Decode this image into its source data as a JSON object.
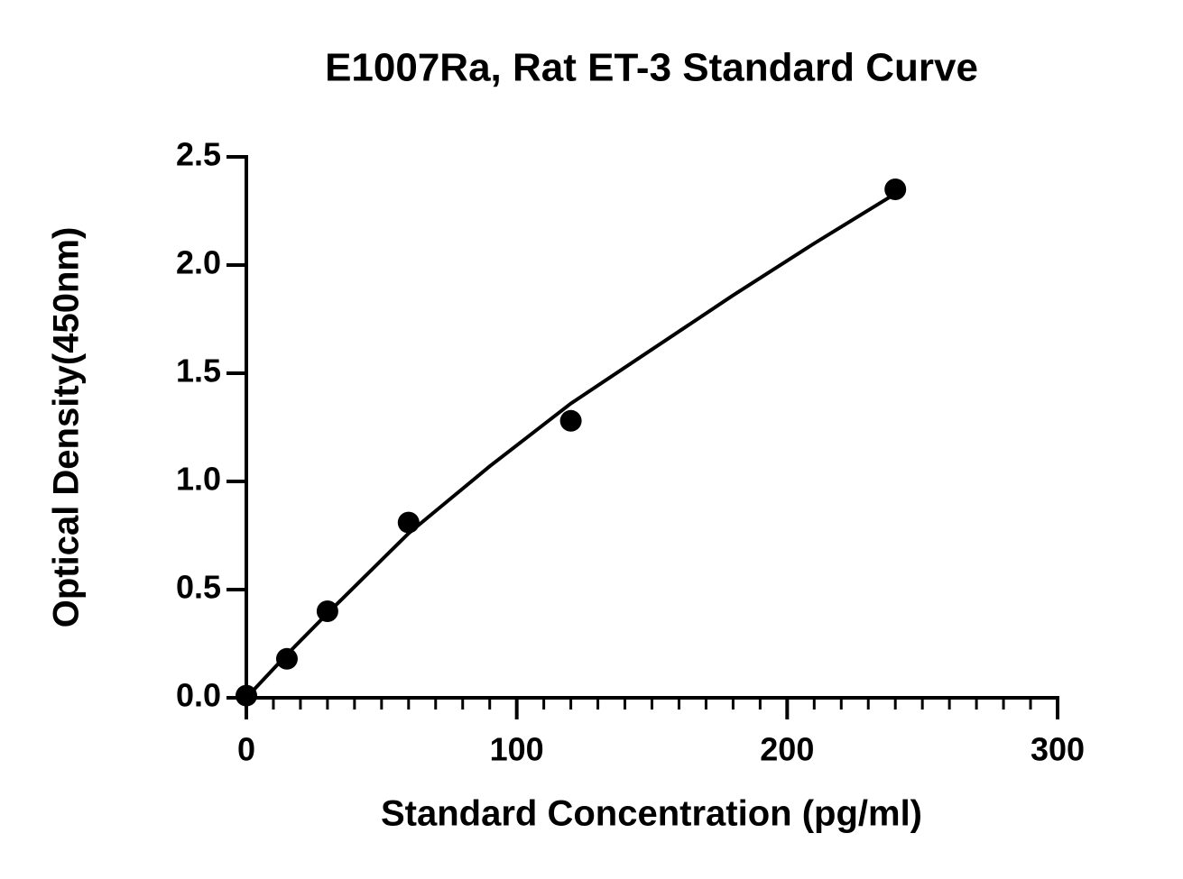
{
  "chart_data": {
    "type": "scatter",
    "title": "E1007Ra, Rat ET-3 Standard Curve",
    "x_label": "Standard Concentration (pg/ml)",
    "y_label": "Optical Density(450nm)",
    "x": [
      0,
      15,
      30,
      60,
      120,
      240
    ],
    "values": [
      0.01,
      0.18,
      0.4,
      0.81,
      1.28,
      2.35
    ],
    "color": "#000000",
    "fit": {
      "x": [
        0,
        15,
        30,
        60,
        90,
        120,
        150,
        180,
        210,
        240
      ],
      "values": [
        0.0,
        0.2,
        0.39,
        0.76,
        1.07,
        1.36,
        1.61,
        1.86,
        2.1,
        2.33
      ]
    },
    "xlim": [
      0,
      300
    ],
    "xticks": [
      0,
      100,
      200,
      300
    ],
    "xminorticks": [
      10,
      20,
      30,
      40,
      50,
      60,
      70,
      80,
      90,
      110,
      120,
      130,
      140,
      150,
      160,
      170,
      180,
      190,
      210,
      220,
      230,
      240,
      250,
      260,
      270,
      280,
      290
    ],
    "ylim": [
      0,
      2.5
    ],
    "yticks": [
      {
        "value": 0,
        "label": "0.0"
      },
      0.5,
      {
        "value": 1,
        "label": "1.0"
      },
      1.5,
      {
        "value": 2,
        "label": "2.0"
      },
      2.5
    ],
    "grid": false
  }
}
